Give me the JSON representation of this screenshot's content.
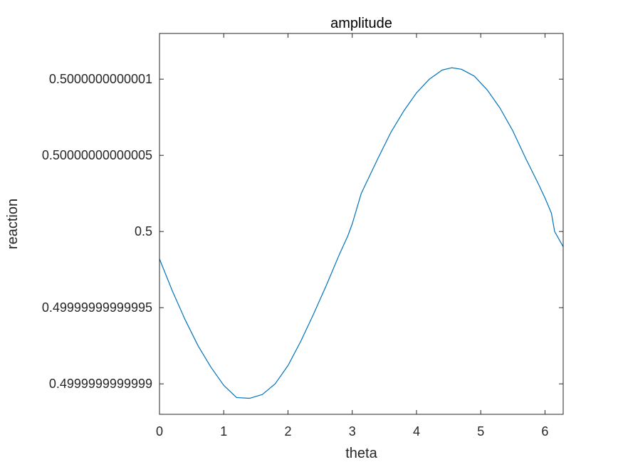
{
  "chart_data": {
    "type": "line",
    "title": "amplitude",
    "xlabel": "theta",
    "ylabel": "reaction",
    "xlim": [
      0,
      6.2832
    ],
    "ylim": [
      0.49999999999988,
      0.50000000000013
    ],
    "ylim_offset_units_1e-14": [
      -12,
      13
    ],
    "grid": false,
    "x_ticks": [
      0,
      1,
      2,
      3,
      4,
      5,
      6
    ],
    "x_tick_labels": [
      "0",
      "1",
      "2",
      "3",
      "4",
      "5",
      "6"
    ],
    "y_ticks_offset_units_1e-14": [
      -10,
      -5,
      0,
      5,
      10
    ],
    "y_tick_labels": [
      "0.4999999999999",
      "0.49999999999995",
      "0.5",
      "0.50000000000005",
      "0.5000000000001"
    ],
    "series": [
      {
        "color": "#0072BD",
        "x": [
          0.0,
          0.2,
          0.4,
          0.6,
          0.8,
          1.0,
          1.2,
          1.4,
          1.6,
          1.8,
          2.0,
          2.2,
          2.4,
          2.6,
          2.8,
          2.93,
          3.0,
          3.14,
          3.4,
          3.6,
          3.8,
          4.0,
          4.2,
          4.4,
          4.55,
          4.7,
          4.9,
          5.1,
          5.3,
          5.5,
          5.7,
          5.9,
          6.0,
          6.1,
          6.15,
          6.2832
        ],
        "y_offset_units_1e-14": [
          -1.8,
          -3.9,
          -5.8,
          -7.5,
          -8.9,
          -10.1,
          -10.9,
          -10.95,
          -10.7,
          -10.0,
          -8.8,
          -7.2,
          -5.4,
          -3.5,
          -1.5,
          -0.3,
          0.5,
          2.5,
          4.8,
          6.5,
          7.9,
          9.1,
          10.0,
          10.6,
          10.75,
          10.65,
          10.2,
          9.3,
          8.1,
          6.6,
          4.8,
          3.1,
          2.2,
          1.2,
          0.0,
          -1.0
        ]
      }
    ]
  }
}
